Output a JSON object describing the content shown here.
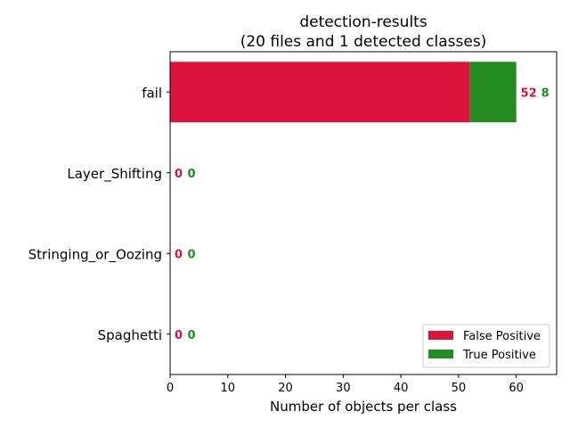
{
  "chart_data": {
    "type": "bar",
    "orientation": "horizontal",
    "stacked": true,
    "title_line1": "detection-results",
    "title_line2": "(20 files and 1 detected classes)",
    "xlabel": "Number of objects per class",
    "ylabel": "",
    "xlim": [
      0,
      67
    ],
    "x_ticks": [
      0,
      10,
      20,
      30,
      40,
      50,
      60
    ],
    "categories": [
      "fail",
      "Layer_Shifting",
      "Stringing_or_Oozing",
      "Spaghetti"
    ],
    "series": [
      {
        "name": "False Positive",
        "color": "#dc143c",
        "values": [
          52,
          0,
          0,
          0
        ]
      },
      {
        "name": "True Positive",
        "color": "#228b22",
        "values": [
          8,
          0,
          0,
          0
        ]
      }
    ],
    "grid": false,
    "legend_position": "lower-right"
  }
}
